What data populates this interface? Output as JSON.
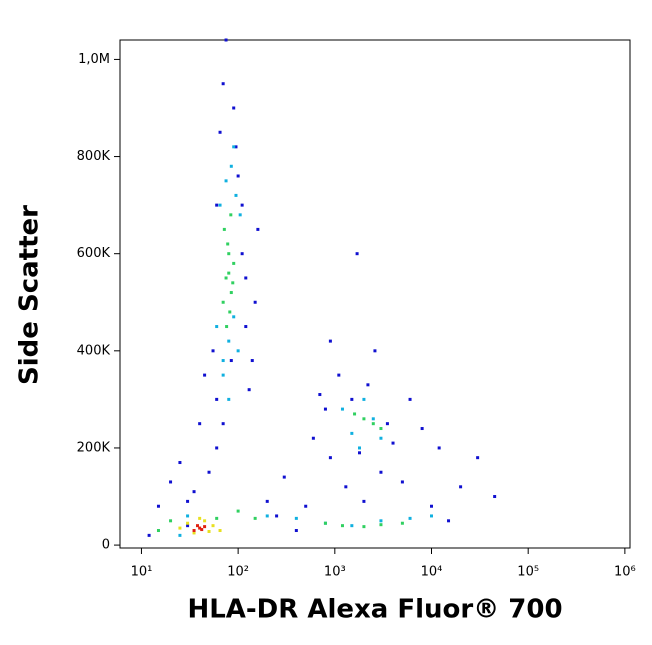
{
  "chart_data": {
    "type": "scatter",
    "x_label": "HLA-DR Alexa Fluor® 700",
    "y_label": "Side Scatter",
    "xscale": "log",
    "xlim": [
      6,
      1130000
    ],
    "ylim": [
      -6000,
      1040000
    ],
    "xticks": [
      {
        "value": 10,
        "label": "10¹"
      },
      {
        "value": 100,
        "label": "10²"
      },
      {
        "value": 1000,
        "label": "10³"
      },
      {
        "value": 10000,
        "label": "10⁴"
      },
      {
        "value": 100000,
        "label": "10⁵"
      },
      {
        "value": 1000000,
        "label": "10⁶"
      }
    ],
    "yticks": [
      0,
      {
        "value": 200000,
        "label": "200K"
      },
      {
        "value": 400000,
        "label": "400K"
      },
      {
        "value": 600000,
        "label": "600K"
      },
      {
        "value": 800000,
        "label": "800K"
      },
      {
        "value": 1000000,
        "label": "1,0M"
      }
    ],
    "series": [
      {
        "color": "#1010d0",
        "x": [
          12,
          15,
          20,
          25,
          30,
          45,
          55,
          60,
          65,
          70,
          75,
          90,
          100,
          110,
          120,
          130,
          150,
          160,
          200,
          250,
          300,
          400,
          500,
          600,
          700,
          800,
          900,
          1100,
          1300,
          1500,
          1800,
          2200,
          2600,
          3000,
          3500,
          4000,
          5000,
          6000,
          8000,
          10000,
          12000,
          15000,
          20000,
          30000,
          45000,
          60,
          70,
          85,
          95,
          110,
          60,
          50,
          40,
          35,
          30,
          120,
          140,
          900,
          2000,
          1700
        ],
        "y": [
          20000,
          80000,
          130000,
          170000,
          40000,
          350000,
          400000,
          700000,
          850000,
          950000,
          1040000,
          900000,
          760000,
          600000,
          450000,
          320000,
          500000,
          650000,
          90000,
          60000,
          140000,
          30000,
          80000,
          220000,
          310000,
          280000,
          180000,
          350000,
          120000,
          300000,
          190000,
          330000,
          400000,
          150000,
          250000,
          210000,
          130000,
          300000,
          240000,
          80000,
          200000,
          50000,
          120000,
          180000,
          100000,
          300000,
          250000,
          380000,
          820000,
          700000,
          200000,
          150000,
          250000,
          110000,
          90000,
          550000,
          380000,
          420000,
          90000,
          600000
        ]
      },
      {
        "color": "#10b0e0",
        "x": [
          60,
          70,
          80,
          90,
          100,
          65,
          75,
          85,
          95,
          105,
          70,
          80,
          90,
          1200,
          1500,
          2000,
          2500,
          3000,
          1800,
          200,
          400,
          800,
          1500,
          3000,
          6000,
          10000,
          30,
          25
        ],
        "y": [
          450000,
          380000,
          420000,
          470000,
          400000,
          700000,
          750000,
          780000,
          720000,
          680000,
          350000,
          300000,
          820000,
          280000,
          230000,
          300000,
          260000,
          220000,
          200000,
          60000,
          55000,
          45000,
          40000,
          50000,
          55000,
          60000,
          60000,
          20000
        ]
      },
      {
        "color": "#30d060",
        "x": [
          70,
          75,
          80,
          85,
          90,
          72,
          78,
          82,
          88,
          76,
          84,
          80,
          2000,
          2500,
          1600,
          3000,
          800,
          1200,
          2000,
          3000,
          5000,
          100,
          150,
          20,
          60,
          15
        ],
        "y": [
          500000,
          550000,
          600000,
          520000,
          580000,
          650000,
          620000,
          480000,
          540000,
          450000,
          680000,
          560000,
          260000,
          250000,
          270000,
          240000,
          45000,
          40000,
          38000,
          42000,
          45000,
          70000,
          55000,
          50000,
          55000,
          30000
        ]
      },
      {
        "color": "#e8e020",
        "x": [
          30,
          35,
          45,
          55,
          65,
          25,
          40,
          50
        ],
        "y": [
          45000,
          25000,
          50000,
          40000,
          30000,
          35000,
          55000,
          28000
        ]
      },
      {
        "color": "#e02010",
        "x": [
          35,
          40,
          45,
          38,
          42
        ],
        "y": [
          30000,
          35000,
          38000,
          40000,
          32000
        ]
      }
    ]
  }
}
